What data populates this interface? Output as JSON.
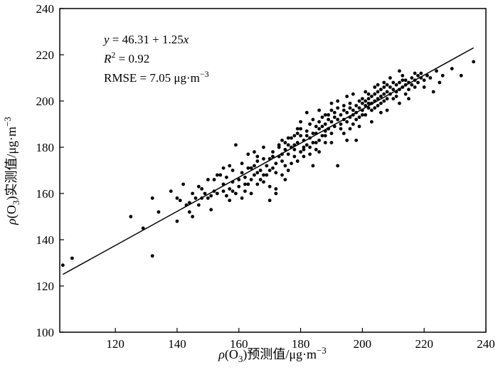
{
  "chart_data": {
    "type": "scatter",
    "title": "",
    "xlabel": "ρ(O₃)预测值/μg·m⁻³",
    "ylabel": "ρ(O₃)实测值/μg·m⁻³",
    "xlim": [
      102,
      240
    ],
    "ylim": [
      100,
      240
    ],
    "xticks": [
      120,
      140,
      160,
      180,
      200,
      220,
      240
    ],
    "yticks": [
      100,
      120,
      140,
      160,
      180,
      200,
      220,
      240
    ],
    "grid": false,
    "annotations": {
      "equation": "y = 46.31 + 1.25x",
      "r2": "R² = 0.92",
      "rmse": "RMSE = 7.05 μg·m⁻³"
    },
    "fit_line": {
      "intercept": 46.31,
      "slope": 1.25,
      "x_start": 103,
      "x_end": 236
    },
    "points": [
      [
        103,
        129
      ],
      [
        106,
        132
      ],
      [
        125,
        150
      ],
      [
        129,
        145
      ],
      [
        132,
        158
      ],
      [
        132,
        133
      ],
      [
        134,
        152
      ],
      [
        138,
        161
      ],
      [
        140,
        148
      ],
      [
        140,
        158
      ],
      [
        141,
        157
      ],
      [
        142,
        164
      ],
      [
        143,
        155
      ],
      [
        144,
        156
      ],
      [
        145,
        160
      ],
      [
        145,
        150
      ],
      [
        146,
        158
      ],
      [
        147,
        163
      ],
      [
        148,
        162
      ],
      [
        148,
        158
      ],
      [
        150,
        158
      ],
      [
        150,
        166
      ],
      [
        151,
        159
      ],
      [
        151,
        153
      ],
      [
        152,
        161
      ],
      [
        153,
        168
      ],
      [
        154,
        168
      ],
      [
        155,
        161
      ],
      [
        155,
        164
      ],
      [
        156,
        167
      ],
      [
        156,
        159
      ],
      [
        157,
        162
      ],
      [
        157,
        157
      ],
      [
        158,
        165
      ],
      [
        159,
        160
      ],
      [
        159,
        181
      ],
      [
        160,
        163
      ],
      [
        161,
        169
      ],
      [
        161,
        173
      ],
      [
        162,
        167
      ],
      [
        162,
        161
      ],
      [
        163,
        171
      ],
      [
        163,
        164
      ],
      [
        164,
        166
      ],
      [
        164,
        160
      ],
      [
        165,
        172
      ],
      [
        165,
        168
      ],
      [
        166,
        164
      ],
      [
        166,
        174
      ],
      [
        167,
        166
      ],
      [
        167,
        170
      ],
      [
        168,
        180
      ],
      [
        168,
        165
      ],
      [
        169,
        172
      ],
      [
        169,
        168
      ],
      [
        170,
        175
      ],
      [
        170,
        163
      ],
      [
        171,
        178
      ],
      [
        171,
        171
      ],
      [
        172,
        162
      ],
      [
        172,
        169
      ],
      [
        172,
        160
      ],
      [
        173,
        176
      ],
      [
        173,
        181
      ],
      [
        174,
        174
      ],
      [
        174,
        168
      ],
      [
        175,
        179
      ],
      [
        175,
        172
      ],
      [
        175,
        166
      ],
      [
        176,
        177
      ],
      [
        176,
        184
      ],
      [
        177,
        180
      ],
      [
        177,
        173
      ],
      [
        178,
        176
      ],
      [
        178,
        185
      ],
      [
        178,
        181
      ],
      [
        179,
        182
      ],
      [
        179,
        174
      ],
      [
        180,
        185
      ],
      [
        180,
        188
      ],
      [
        180,
        178
      ],
      [
        181,
        183
      ],
      [
        181,
        180
      ],
      [
        181,
        176
      ],
      [
        182,
        187
      ],
      [
        182,
        181
      ],
      [
        183,
        184
      ],
      [
        183,
        190
      ],
      [
        183,
        177
      ],
      [
        184,
        186
      ],
      [
        184,
        182
      ],
      [
        185,
        189
      ],
      [
        185,
        186
      ],
      [
        185,
        179
      ],
      [
        186,
        188
      ],
      [
        186,
        183
      ],
      [
        186,
        191
      ],
      [
        187,
        189
      ],
      [
        187,
        185
      ],
      [
        187,
        193
      ],
      [
        188,
        190
      ],
      [
        188,
        187
      ],
      [
        188,
        182
      ],
      [
        189,
        192
      ],
      [
        189,
        188
      ],
      [
        189,
        194
      ],
      [
        190,
        191
      ],
      [
        190,
        186
      ],
      [
        190,
        196
      ],
      [
        191,
        193
      ],
      [
        191,
        189
      ],
      [
        191,
        195
      ],
      [
        192,
        192
      ],
      [
        192,
        197
      ],
      [
        192,
        172
      ],
      [
        193,
        194
      ],
      [
        193,
        190
      ],
      [
        193,
        188
      ],
      [
        194,
        196
      ],
      [
        194,
        192
      ],
      [
        194,
        198
      ],
      [
        195,
        195
      ],
      [
        195,
        191
      ],
      [
        195,
        183
      ],
      [
        196,
        197
      ],
      [
        196,
        193
      ],
      [
        196,
        199
      ],
      [
        197,
        196
      ],
      [
        197,
        194
      ],
      [
        197,
        190
      ],
      [
        198,
        198
      ],
      [
        198,
        195
      ],
      [
        198,
        183
      ],
      [
        199,
        200
      ],
      [
        199,
        197
      ],
      [
        199,
        193
      ],
      [
        200,
        199
      ],
      [
        200,
        196
      ],
      [
        200,
        201
      ],
      [
        201,
        200
      ],
      [
        201,
        198
      ],
      [
        201,
        194
      ],
      [
        202,
        201
      ],
      [
        202,
        203
      ],
      [
        202,
        199
      ],
      [
        203,
        202
      ],
      [
        203,
        199
      ],
      [
        203,
        191
      ],
      [
        204,
        200
      ],
      [
        204,
        203
      ],
      [
        204,
        197
      ],
      [
        205,
        204
      ],
      [
        205,
        201
      ],
      [
        205,
        198
      ],
      [
        206,
        205
      ],
      [
        206,
        202
      ],
      [
        206,
        199
      ],
      [
        207,
        203
      ],
      [
        207,
        206
      ],
      [
        207,
        200
      ],
      [
        208,
        204
      ],
      [
        208,
        201
      ],
      [
        208,
        207
      ],
      [
        209,
        206
      ],
      [
        209,
        203
      ],
      [
        210,
        205
      ],
      [
        210,
        208
      ],
      [
        210,
        201
      ],
      [
        211,
        207
      ],
      [
        211,
        204
      ],
      [
        212,
        208
      ],
      [
        212,
        205
      ],
      [
        212,
        199
      ],
      [
        213,
        209
      ],
      [
        213,
        206
      ],
      [
        214,
        207
      ],
      [
        214,
        209
      ],
      [
        214,
        203
      ],
      [
        215,
        208
      ],
      [
        215,
        205
      ],
      [
        216,
        210
      ],
      [
        216,
        207
      ],
      [
        217,
        209
      ],
      [
        217,
        206
      ],
      [
        218,
        211
      ],
      [
        218,
        208
      ],
      [
        219,
        212
      ],
      [
        219,
        210
      ],
      [
        220,
        209
      ],
      [
        221,
        211
      ],
      [
        222,
        210
      ],
      [
        223,
        204
      ],
      [
        224,
        213
      ],
      [
        225,
        208
      ],
      [
        226,
        211
      ],
      [
        229,
        214
      ],
      [
        236,
        217
      ],
      [
        232,
        211
      ],
      [
        186,
        178
      ],
      [
        184,
        172
      ],
      [
        182,
        195
      ],
      [
        179,
        188
      ],
      [
        176,
        170
      ],
      [
        174,
        183
      ],
      [
        170,
        157
      ],
      [
        168,
        175
      ],
      [
        166,
        176
      ],
      [
        165,
        178
      ],
      [
        163,
        177
      ],
      [
        161,
        158
      ],
      [
        158,
        170
      ],
      [
        157,
        172
      ],
      [
        155,
        171
      ],
      [
        153,
        160
      ],
      [
        152,
        166
      ],
      [
        149,
        160
      ],
      [
        147,
        155
      ],
      [
        144,
        152
      ],
      [
        190,
        182
      ],
      [
        192,
        200
      ],
      [
        194,
        186
      ],
      [
        195,
        202
      ],
      [
        197,
        203
      ],
      [
        199,
        189
      ],
      [
        201,
        204
      ],
      [
        203,
        196
      ],
      [
        205,
        207
      ],
      [
        207,
        208
      ],
      [
        209,
        210
      ],
      [
        211,
        202
      ],
      [
        213,
        211
      ],
      [
        215,
        201
      ],
      [
        217,
        212
      ],
      [
        220,
        206
      ],
      [
        212,
        213
      ],
      [
        208,
        196
      ],
      [
        206,
        195
      ],
      [
        204,
        206
      ],
      [
        196,
        188
      ],
      [
        198,
        192
      ],
      [
        200,
        194
      ],
      [
        202,
        197
      ],
      [
        188,
        194
      ],
      [
        186,
        196
      ],
      [
        184,
        192
      ],
      [
        182,
        185
      ],
      [
        180,
        191
      ],
      [
        178,
        179
      ],
      [
        176,
        181
      ],
      [
        174,
        177
      ],
      [
        172,
        173
      ],
      [
        170,
        170
      ],
      [
        168,
        168
      ],
      [
        166,
        169
      ],
      [
        164,
        171
      ],
      [
        162,
        164
      ],
      [
        160,
        166
      ],
      [
        158,
        161
      ],
      [
        190,
        199
      ],
      [
        188,
        185
      ],
      [
        185,
        182
      ],
      [
        183,
        180
      ],
      [
        181,
        179
      ],
      [
        179,
        186
      ],
      [
        177,
        184
      ],
      [
        175,
        182
      ],
      [
        173,
        180
      ],
      [
        171,
        176
      ]
    ]
  }
}
